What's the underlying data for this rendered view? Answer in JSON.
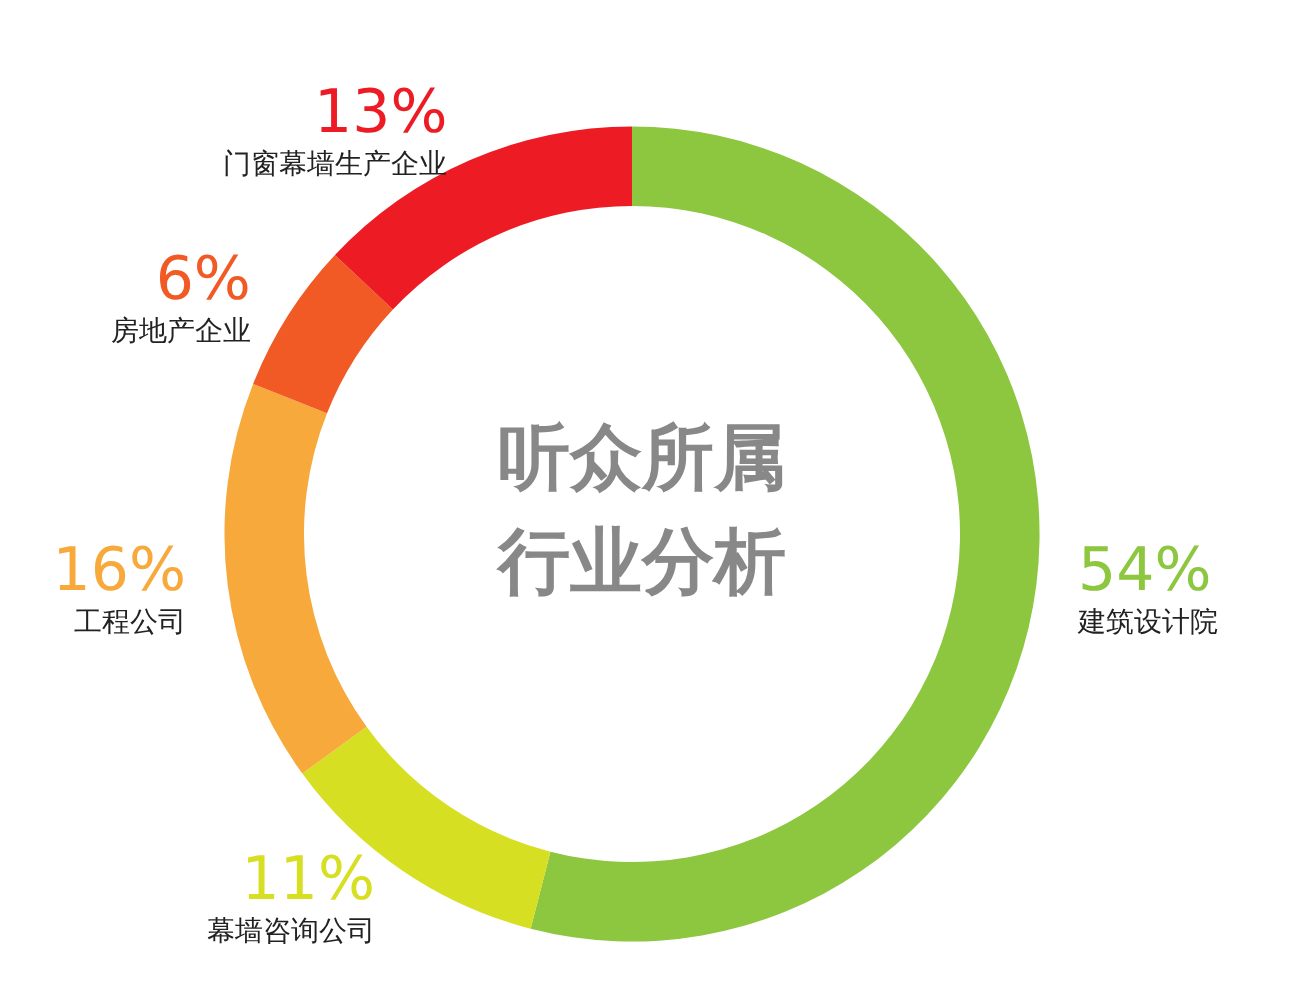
{
  "chart_data": {
    "type": "donut",
    "title": "听众所属行业分析",
    "categories": [
      "建筑设计院",
      "幕墙咨询公司",
      "工程公司",
      "房地产企业",
      "门窗幕墙生产企业"
    ],
    "values": [
      54,
      11,
      16,
      6,
      13
    ],
    "value_labels": [
      "54%",
      "11%",
      "16%",
      "6%",
      "13%"
    ],
    "colors": [
      "#8dc63f",
      "#d7df23",
      "#f7a93b",
      "#f15a24",
      "#ed1c24"
    ],
    "legend": false
  }
}
